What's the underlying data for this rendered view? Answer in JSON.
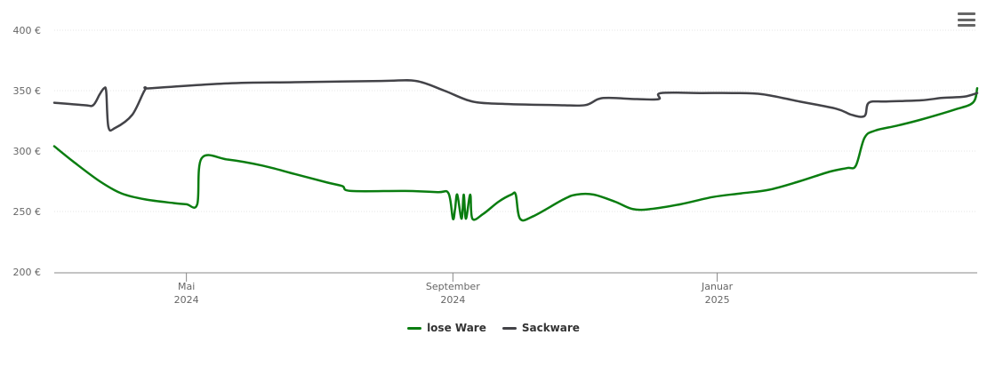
{
  "menu": {
    "icon": "hamburger-menu-icon"
  },
  "chart_data": {
    "type": "line",
    "title": "",
    "xlabel": "",
    "ylabel": "",
    "ylim": [
      200,
      400
    ],
    "xlim": [
      "2024-03-01",
      "2025-05-01"
    ],
    "yticks": [
      {
        "value": 200,
        "label": "200 €"
      },
      {
        "value": 250,
        "label": "250 €"
      },
      {
        "value": 300,
        "label": "300 €"
      },
      {
        "value": 350,
        "label": "350 €"
      },
      {
        "value": 400,
        "label": "400 €"
      }
    ],
    "xticks": [
      {
        "date": "2024-05-01",
        "line1": "Mai",
        "line2": "2024"
      },
      {
        "date": "2024-09-01",
        "line1": "September",
        "line2": "2024"
      },
      {
        "date": "2025-01-01",
        "line1": "Januar",
        "line2": "2025"
      }
    ],
    "grid": true,
    "legend_position": "bottom-center",
    "series": [
      {
        "name": "lose Ware",
        "color": "#0a7d10",
        "points": [
          [
            "2024-03-01",
            304
          ],
          [
            "2024-03-10",
            291
          ],
          [
            "2024-03-22",
            275
          ],
          [
            "2024-04-01",
            265
          ],
          [
            "2024-04-12",
            260
          ],
          [
            "2024-04-25",
            257
          ],
          [
            "2024-05-01",
            256
          ],
          [
            "2024-05-06",
            256
          ],
          [
            "2024-05-08",
            294
          ],
          [
            "2024-05-20",
            293
          ],
          [
            "2024-06-05",
            288
          ],
          [
            "2024-06-20",
            281
          ],
          [
            "2024-07-05",
            274
          ],
          [
            "2024-07-12",
            271
          ],
          [
            "2024-07-16",
            267
          ],
          [
            "2024-08-10",
            267
          ],
          [
            "2024-08-25",
            266
          ],
          [
            "2024-08-30",
            265
          ],
          [
            "2024-09-01",
            244
          ],
          [
            "2024-09-02",
            252
          ],
          [
            "2024-09-03",
            264
          ],
          [
            "2024-09-05",
            244
          ],
          [
            "2024-09-06",
            264
          ],
          [
            "2024-09-07",
            244
          ],
          [
            "2024-09-09",
            264
          ],
          [
            "2024-09-10",
            244
          ],
          [
            "2024-09-15",
            248
          ],
          [
            "2024-09-22",
            258
          ],
          [
            "2024-09-28",
            264
          ],
          [
            "2024-09-30",
            264
          ],
          [
            "2024-10-02",
            244
          ],
          [
            "2024-10-08",
            246
          ],
          [
            "2024-10-22",
            260
          ],
          [
            "2024-10-28",
            264
          ],
          [
            "2024-11-05",
            264
          ],
          [
            "2024-11-15",
            258
          ],
          [
            "2024-11-23",
            252
          ],
          [
            "2024-12-01",
            252
          ],
          [
            "2024-12-15",
            256
          ],
          [
            "2024-12-30",
            262
          ],
          [
            "2025-01-12",
            265
          ],
          [
            "2025-01-25",
            268
          ],
          [
            "2025-02-08",
            275
          ],
          [
            "2025-02-22",
            283
          ],
          [
            "2025-03-02",
            286
          ],
          [
            "2025-03-06",
            288
          ],
          [
            "2025-03-10",
            311
          ],
          [
            "2025-03-15",
            317
          ],
          [
            "2025-03-25",
            321
          ],
          [
            "2025-04-05",
            326
          ],
          [
            "2025-04-20",
            334
          ],
          [
            "2025-04-29",
            340
          ],
          [
            "2025-05-01",
            352
          ]
        ]
      },
      {
        "name": "Sackware",
        "color": "#434348",
        "points": [
          [
            "2024-03-01",
            340
          ],
          [
            "2024-03-15",
            338
          ],
          [
            "2024-03-19",
            338
          ],
          [
            "2024-03-22",
            347
          ],
          [
            "2024-03-24",
            352
          ],
          [
            "2024-03-25",
            349
          ],
          [
            "2024-03-26",
            320
          ],
          [
            "2024-03-29",
            319
          ],
          [
            "2024-04-06",
            330
          ],
          [
            "2024-04-12",
            351
          ],
          [
            "2024-04-15",
            352
          ],
          [
            "2024-05-20",
            356
          ],
          [
            "2024-06-20",
            357
          ],
          [
            "2024-07-30",
            358
          ],
          [
            "2024-08-15",
            358
          ],
          [
            "2024-08-28",
            350
          ],
          [
            "2024-09-10",
            341
          ],
          [
            "2024-09-25",
            339
          ],
          [
            "2024-10-20",
            338
          ],
          [
            "2024-11-01",
            338
          ],
          [
            "2024-11-07",
            343
          ],
          [
            "2024-11-12",
            344
          ],
          [
            "2024-11-25",
            343
          ],
          [
            "2024-12-05",
            343
          ],
          [
            "2024-12-06",
            348
          ],
          [
            "2024-12-25",
            348
          ],
          [
            "2025-01-08",
            348
          ],
          [
            "2025-01-22",
            347
          ],
          [
            "2025-02-08",
            341
          ],
          [
            "2025-02-25",
            335
          ],
          [
            "2025-03-04",
            330
          ],
          [
            "2025-03-10",
            329
          ],
          [
            "2025-03-12",
            340
          ],
          [
            "2025-03-20",
            341
          ],
          [
            "2025-04-05",
            342
          ],
          [
            "2025-04-15",
            344
          ],
          [
            "2025-04-25",
            345
          ],
          [
            "2025-05-01",
            348
          ]
        ]
      }
    ]
  }
}
